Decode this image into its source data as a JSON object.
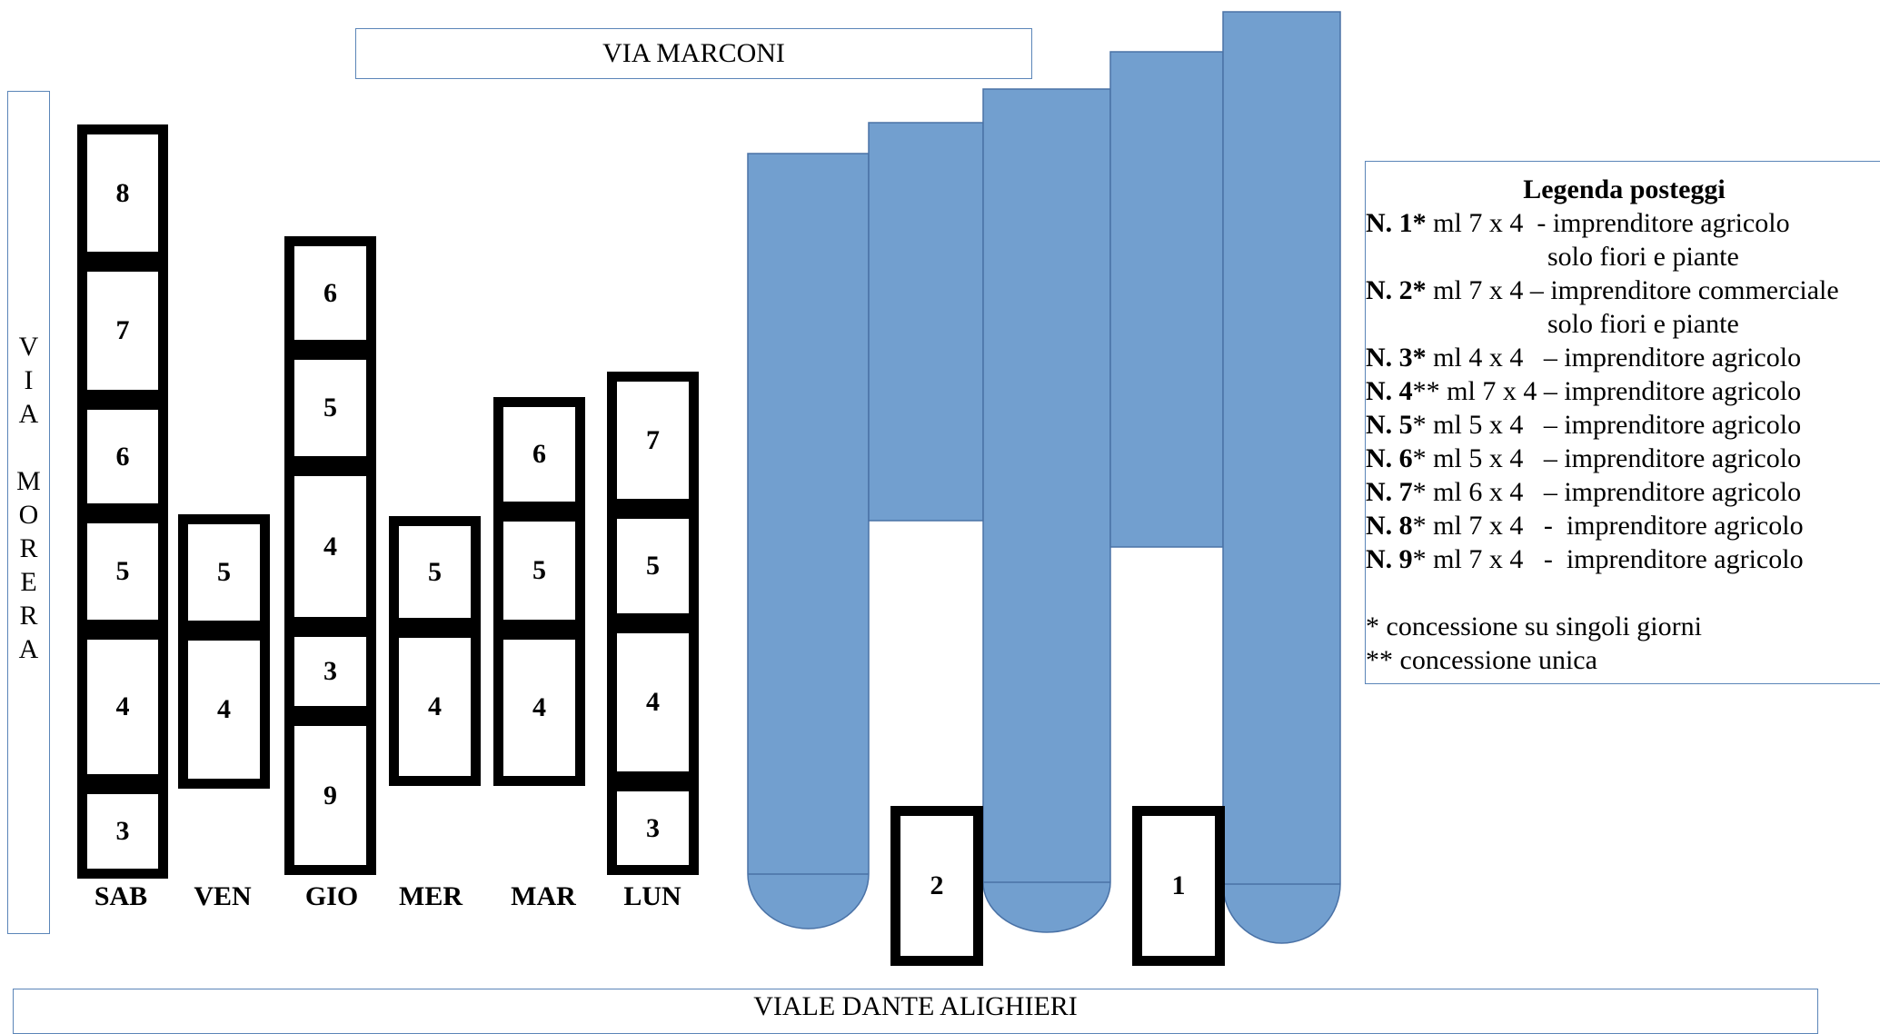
{
  "streets": {
    "top": "VIA MARCONI",
    "left_letters": [
      "V",
      "I",
      "A",
      "",
      "M",
      "O",
      "R",
      "E",
      "R",
      "A"
    ],
    "bottom": "VIALE DANTE ALIGHIERI"
  },
  "days": [
    {
      "label": "SAB",
      "stalls": [
        "8",
        "7",
        "6",
        "5",
        "4",
        "3"
      ]
    },
    {
      "label": "VEN",
      "stalls": [
        "5",
        "4"
      ]
    },
    {
      "label": "GIO",
      "stalls": [
        "6",
        "5",
        "4",
        "3",
        "9"
      ]
    },
    {
      "label": "MER",
      "stalls": [
        "5",
        "4"
      ]
    },
    {
      "label": "MAR",
      "stalls": [
        "6",
        "5",
        "4"
      ]
    },
    {
      "label": "LUN",
      "stalls": [
        "7",
        "5",
        "4",
        "3"
      ]
    }
  ],
  "fixed_stalls": [
    "2",
    "1"
  ],
  "colors": {
    "building": "#729fcf",
    "building_stroke": "#4a72a6",
    "frame": "#5b85b8"
  },
  "legend": {
    "title": "Legenda posteggi",
    "rows": [
      {
        "num": "N. 1*",
        "rest": " ml 7 x 4  - imprenditore agricolo",
        "cont": "solo fiori e piante"
      },
      {
        "num": "N. 2*",
        "rest": " ml 7 x 4 – imprenditore commerciale",
        "cont": "solo fiori e piante"
      },
      {
        "num": "N. 3*",
        "rest": " ml 4 x 4   – imprenditore agricolo"
      },
      {
        "num": "N. 4",
        "rest": "** ml 7 x 4 – imprenditore agricolo"
      },
      {
        "num": "N. 5",
        "rest": "* ml 5 x 4   – imprenditore agricolo"
      },
      {
        "num": "N. 6",
        "rest": "* ml 5 x 4   – imprenditore agricolo"
      },
      {
        "num": "N. 7",
        "rest": "* ml 6 x 4   – imprenditore agricolo"
      },
      {
        "num": "N. 8",
        "rest": "* ml 7 x 4   -  imprenditore agricolo"
      },
      {
        "num": "N. 9",
        "rest": "* ml 7 x 4   -  imprenditore agricolo"
      }
    ],
    "notes": [
      "* concessione su singoli giorni",
      "** concessione unica"
    ]
  }
}
